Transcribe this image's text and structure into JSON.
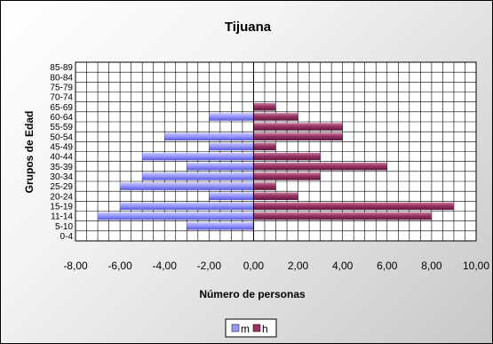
{
  "chart_data": {
    "type": "bar",
    "orientation": "horizontal",
    "title": "Tijuana",
    "xlabel": "Número de personas",
    "ylabel": "Grupos de Edad",
    "categories": [
      "0-4",
      "5-10",
      "11-14",
      "15-19",
      "20-24",
      "25-29",
      "30-34",
      "35-39",
      "40-44",
      "45-49",
      "50-54",
      "55-59",
      "60-64",
      "65-69",
      "70-74",
      "75-79",
      "80-84",
      "85-89"
    ],
    "series": [
      {
        "name": "m",
        "values": [
          0,
          -3,
          -7,
          -6,
          -2,
          -6,
          -5,
          -3,
          -5,
          -2,
          -4,
          0,
          -2,
          0,
          0,
          0,
          0,
          0
        ],
        "color": "#9999ff"
      },
      {
        "name": "h",
        "values": [
          0,
          0,
          8,
          9,
          2,
          1,
          3,
          6,
          3,
          1,
          4,
          4,
          2,
          1,
          0,
          0,
          0,
          0
        ],
        "color": "#993366"
      }
    ],
    "xlim": [
      -8,
      10
    ],
    "xticks": [
      "-8,00",
      "-6,00",
      "-4,00",
      "-2,00",
      "0,00",
      "2,00",
      "4,00",
      "6,00",
      "8,00",
      "10,00"
    ],
    "grid": true,
    "legend_position": "bottom"
  }
}
